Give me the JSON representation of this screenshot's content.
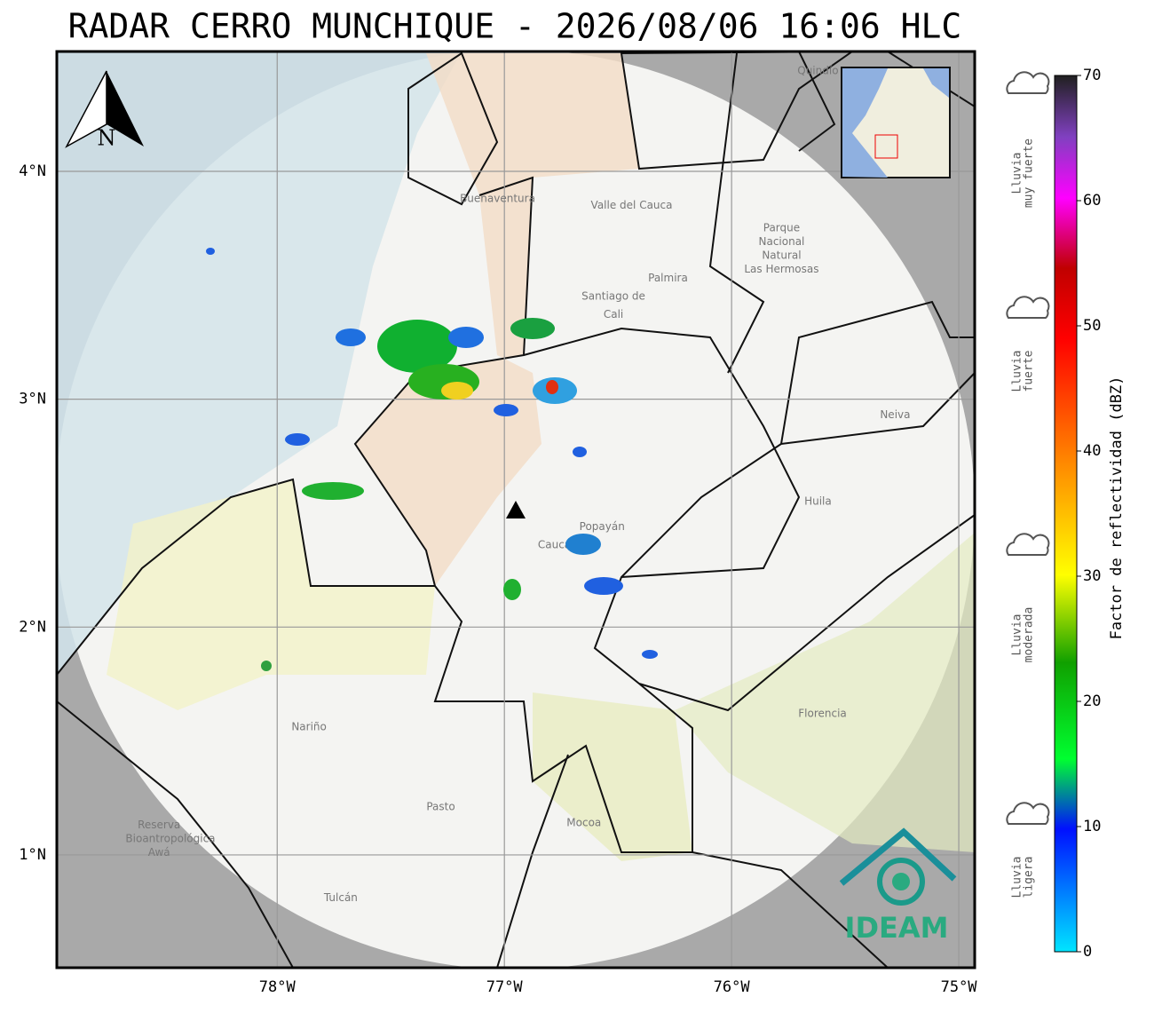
{
  "title": "RADAR CERRO MUNCHIQUE - 2026/08/06 16:06 HLC",
  "map": {
    "lon_range": [
      -78.97,
      -74.93
    ],
    "lat_range": [
      0.505,
      4.526
    ],
    "lon_ticks": [
      {
        "value": -78,
        "label": "78°W"
      },
      {
        "value": -77,
        "label": "77°W"
      },
      {
        "value": -76,
        "label": "76°W"
      },
      {
        "value": -75,
        "label": "75°W"
      }
    ],
    "lat_ticks": [
      {
        "value": 4,
        "label": "4°N"
      },
      {
        "value": 3,
        "label": "3°N"
      },
      {
        "value": 2,
        "label": "2°N"
      },
      {
        "value": 1,
        "label": "1°N"
      }
    ],
    "north": "N",
    "places": [
      {
        "name": "Buenaventura",
        "lon": -77.03,
        "lat": 3.88
      },
      {
        "name": "Valle del Cauca",
        "lon": -76.44,
        "lat": 3.85
      },
      {
        "name": "Palmira",
        "lon": -76.28,
        "lat": 3.53
      },
      {
        "name": "Santiago de",
        "lon": -76.52,
        "lat": 3.45
      },
      {
        "name": "Cali",
        "lon": -76.52,
        "lat": 3.37
      },
      {
        "name": "Parque",
        "lon": -75.78,
        "lat": 3.75
      },
      {
        "name": "Nacional",
        "lon": -75.78,
        "lat": 3.69
      },
      {
        "name": "Natural",
        "lon": -75.78,
        "lat": 3.63
      },
      {
        "name": "Las Hermosas",
        "lon": -75.78,
        "lat": 3.57
      },
      {
        "name": "Neiva",
        "lon": -75.28,
        "lat": 2.93
      },
      {
        "name": "Huila",
        "lon": -75.62,
        "lat": 2.55
      },
      {
        "name": "Popayán",
        "lon": -76.57,
        "lat": 2.44
      },
      {
        "name": "Cauca",
        "lon": -76.78,
        "lat": 2.36
      },
      {
        "name": "Nariño",
        "lon": -77.86,
        "lat": 1.56
      },
      {
        "name": "Pasto",
        "lon": -77.28,
        "lat": 1.21
      },
      {
        "name": "Mocoa",
        "lon": -76.65,
        "lat": 1.14
      },
      {
        "name": "Florencia",
        "lon": -75.6,
        "lat": 1.62
      },
      {
        "name": "Reserva",
        "lon": -78.52,
        "lat": 1.13
      },
      {
        "name": "Bioantropológica",
        "lon": -78.47,
        "lat": 1.07
      },
      {
        "name": "Awá",
        "lon": -78.52,
        "lat": 1.01
      },
      {
        "name": "Tulcán",
        "lon": -77.72,
        "lat": 0.81
      },
      {
        "name": "Quindío",
        "lon": -75.62,
        "lat": 4.44
      }
    ],
    "logo": "IDEAM"
  },
  "colorbar": {
    "label": "Factor de reflectividad (dBZ)",
    "range": [
      0,
      70
    ],
    "ticks": [
      0,
      10,
      20,
      30,
      40,
      50,
      60,
      70
    ]
  },
  "rain_categories": [
    {
      "lines": [
        "Lluvia",
        "muy fuerte"
      ]
    },
    {
      "lines": [
        "Lluvia",
        "fuerte"
      ]
    },
    {
      "lines": [
        "Lluvia",
        "moderada"
      ]
    },
    {
      "lines": [
        "Lluvia",
        "ligera"
      ]
    }
  ]
}
